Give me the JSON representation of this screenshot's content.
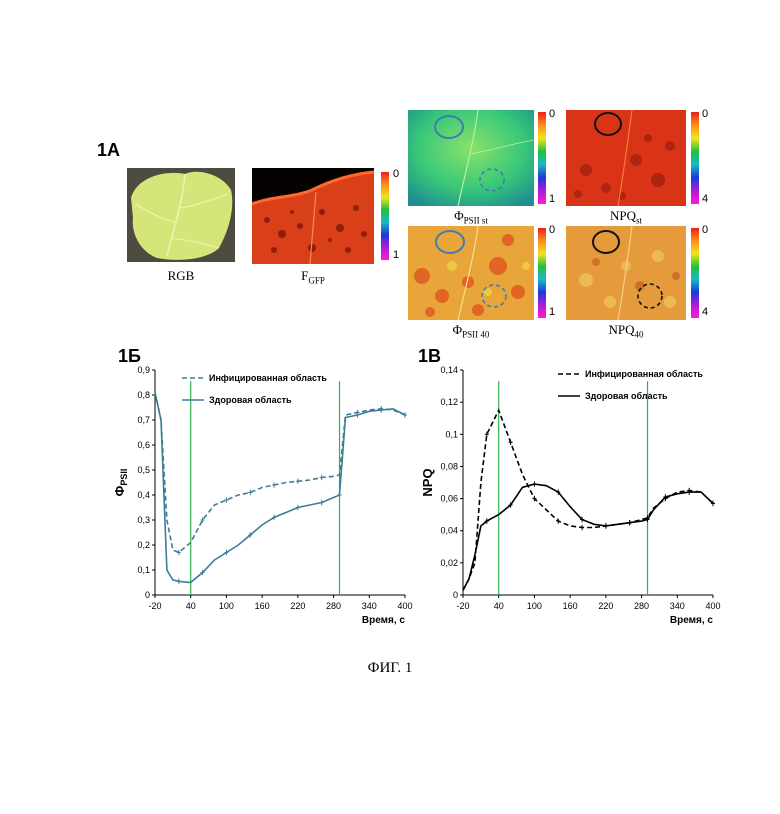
{
  "figure_caption": "ФИГ. 1",
  "panel_1a": {
    "label": "1А",
    "images": [
      {
        "caption_main": "RGB",
        "caption_sub": ""
      },
      {
        "caption_main": "F",
        "caption_sub": "GFP",
        "scale_top": "0",
        "scale_bottom": "1"
      },
      {
        "caption_main": "Φ",
        "caption_sub": "PSII st",
        "scale_top": "0",
        "scale_bottom": "1"
      },
      {
        "caption_main": "NPQ",
        "caption_sub": "st",
        "scale_top": "0",
        "scale_bottom": "4"
      },
      {
        "caption_main": "Φ",
        "caption_sub": "PSII 40",
        "scale_top": "0",
        "scale_bottom": "1"
      },
      {
        "caption_main": "NPQ",
        "caption_sub": "40",
        "scale_top": "0",
        "scale_bottom": "4"
      }
    ]
  },
  "colors": {
    "infected_b": "#3d7d96",
    "green_line": "#2fb34a",
    "black": "#000000"
  },
  "chart_data": [
    {
      "panel": "1Б",
      "type": "line",
      "ylabel": "Φ",
      "ylabel_sub": "PSII",
      "xlabel": "Время, с",
      "ylim": [
        0,
        0.9
      ],
      "xlim": [
        -20,
        400
      ],
      "yticks": [
        "0",
        "0,1",
        "0,2",
        "0,3",
        "0,4",
        "0,5",
        "0,6",
        "0,7",
        "0,8",
        "0,9"
      ],
      "xticks": [
        "-20",
        "40",
        "100",
        "160",
        "220",
        "280",
        "340",
        "400"
      ],
      "vlines": [
        40,
        290
      ],
      "series": [
        {
          "name": "Инфицированная область",
          "style": "dashed",
          "x": [
            -20,
            -10,
            0,
            10,
            20,
            40,
            60,
            80,
            100,
            120,
            140,
            160,
            180,
            200,
            220,
            240,
            260,
            280,
            290,
            300,
            320,
            340,
            360,
            380,
            400
          ],
          "y": [
            0.81,
            0.7,
            0.3,
            0.18,
            0.17,
            0.21,
            0.3,
            0.36,
            0.38,
            0.4,
            0.41,
            0.43,
            0.44,
            0.45,
            0.455,
            0.46,
            0.47,
            0.475,
            0.48,
            0.72,
            0.73,
            0.74,
            0.745,
            0.74,
            0.72
          ]
        },
        {
          "name": "Здоровая область",
          "style": "solid",
          "x": [
            -20,
            -10,
            0,
            10,
            20,
            40,
            60,
            80,
            100,
            120,
            140,
            160,
            180,
            200,
            220,
            240,
            260,
            280,
            290,
            300,
            320,
            340,
            360,
            380,
            400
          ],
          "y": [
            0.81,
            0.7,
            0.1,
            0.06,
            0.055,
            0.05,
            0.09,
            0.14,
            0.17,
            0.2,
            0.24,
            0.28,
            0.31,
            0.33,
            0.35,
            0.36,
            0.37,
            0.39,
            0.4,
            0.71,
            0.72,
            0.735,
            0.74,
            0.745,
            0.72
          ]
        }
      ]
    },
    {
      "panel": "1В",
      "type": "line",
      "ylabel": "NPQ",
      "xlabel": "Время, с",
      "ylim": [
        0,
        0.14
      ],
      "xlim": [
        -20,
        400
      ],
      "yticks": [
        "0",
        "0,02",
        "0,04",
        "0,06",
        "0,08",
        "0,1",
        "0,12",
        "0,14"
      ],
      "xticks": [
        "-20",
        "40",
        "100",
        "160",
        "220",
        "280",
        "340",
        "400"
      ],
      "vlines": [
        40,
        290
      ],
      "series": [
        {
          "name": "Инфицированная область",
          "style": "dashed",
          "x": [
            -20,
            -10,
            0,
            10,
            20,
            40,
            60,
            80,
            100,
            120,
            140,
            160,
            180,
            200,
            220,
            240,
            260,
            280,
            290,
            300,
            320,
            340,
            360,
            380,
            400
          ],
          "y": [
            0.003,
            0.01,
            0.02,
            0.07,
            0.1,
            0.115,
            0.095,
            0.075,
            0.06,
            0.053,
            0.046,
            0.043,
            0.042,
            0.042,
            0.043,
            0.044,
            0.045,
            0.047,
            0.048,
            0.054,
            0.06,
            0.064,
            0.065,
            0.064,
            0.057
          ]
        },
        {
          "name": "Здоровая область",
          "style": "solid",
          "x": [
            -20,
            -10,
            0,
            10,
            20,
            40,
            60,
            80,
            100,
            120,
            140,
            160,
            180,
            200,
            220,
            240,
            260,
            280,
            290,
            300,
            320,
            340,
            360,
            380,
            400
          ],
          "y": [
            0.003,
            0.01,
            0.025,
            0.043,
            0.046,
            0.05,
            0.056,
            0.067,
            0.069,
            0.068,
            0.064,
            0.055,
            0.047,
            0.044,
            0.043,
            0.044,
            0.045,
            0.046,
            0.047,
            0.053,
            0.061,
            0.063,
            0.064,
            0.064,
            0.057
          ]
        }
      ]
    }
  ]
}
